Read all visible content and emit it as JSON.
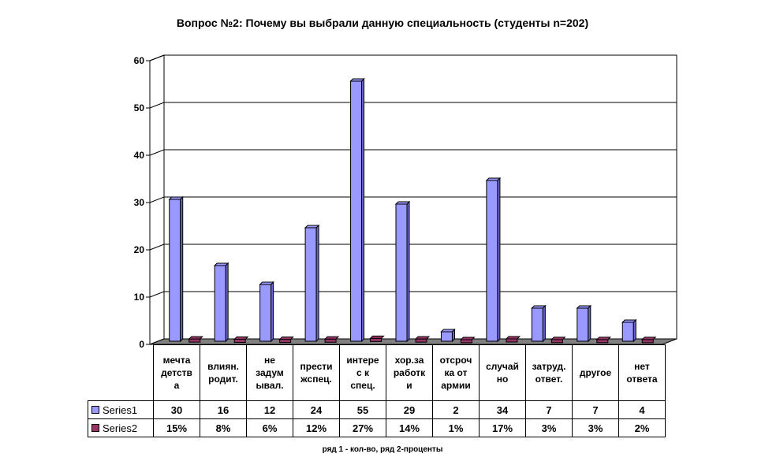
{
  "chart_data": {
    "type": "bar",
    "title": "Вопрос №2: Почему вы выбрали данную специальность (студенты  n=202)",
    "categories": [
      "мечта\nдетств\nа",
      "влиян.\nродит.",
      "не\nзадум\nывал.",
      "прести\nжспец.",
      "интере\nс к\nспец.",
      "хор.за\nработк\nи",
      "отсроч\nка от\nармии",
      "случай\nно",
      "затруд.\nответ.",
      "другое",
      "нет\nответа"
    ],
    "series": [
      {
        "name": "Series1",
        "color": "#9999ff",
        "values": [
          30,
          16,
          12,
          24,
          55,
          29,
          2,
          34,
          7,
          7,
          4
        ],
        "labels": [
          "30",
          "16",
          "12",
          "24",
          "55",
          "29",
          "2",
          "34",
          "7",
          "7",
          "4"
        ]
      },
      {
        "name": "Series2",
        "color": "#993366",
        "values": [
          0.15,
          0.08,
          0.06,
          0.12,
          0.27,
          0.14,
          0.01,
          0.17,
          0.03,
          0.03,
          0.02
        ],
        "labels": [
          "15%",
          "8%",
          "6%",
          "12%",
          "27%",
          "14%",
          "1%",
          "17%",
          "3%",
          "3%",
          "2%"
        ]
      }
    ],
    "ylim": [
      0,
      60
    ],
    "yticks": [
      "0",
      "10",
      "20",
      "30",
      "40",
      "50",
      "60"
    ],
    "grid": true,
    "legend": "data-table",
    "footnote": "ряд 1 - кол-во, ряд 2-проценты"
  }
}
